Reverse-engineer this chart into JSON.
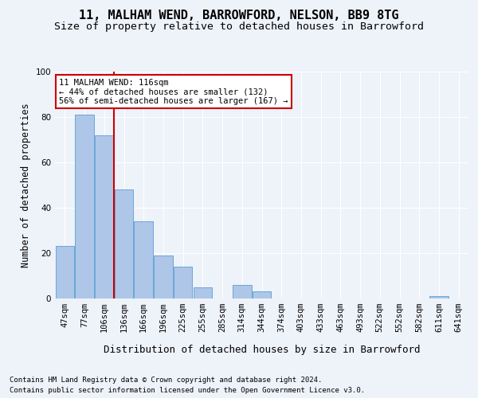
{
  "title": "11, MALHAM WEND, BARROWFORD, NELSON, BB9 8TG",
  "subtitle": "Size of property relative to detached houses in Barrowford",
  "xlabel": "Distribution of detached houses by size in Barrowford",
  "ylabel": "Number of detached properties",
  "categories": [
    "47sqm",
    "77sqm",
    "106sqm",
    "136sqm",
    "166sqm",
    "196sqm",
    "225sqm",
    "255sqm",
    "285sqm",
    "314sqm",
    "344sqm",
    "374sqm",
    "403sqm",
    "433sqm",
    "463sqm",
    "493sqm",
    "522sqm",
    "552sqm",
    "582sqm",
    "611sqm",
    "641sqm"
  ],
  "values": [
    23,
    81,
    72,
    48,
    34,
    19,
    14,
    5,
    0,
    6,
    3,
    0,
    0,
    0,
    0,
    0,
    0,
    0,
    0,
    1,
    0
  ],
  "bar_color": "#aec6e8",
  "bar_edgecolor": "#5a9fd4",
  "annotation_text": "11 MALHAM WEND: 116sqm\n← 44% of detached houses are smaller (132)\n56% of semi-detached houses are larger (167) →",
  "annotation_box_color": "#ffffff",
  "annotation_box_edgecolor": "#cc0000",
  "vline_color": "#cc0000",
  "background_color": "#eef2f9",
  "grid_color": "#ffffff",
  "footer_line1": "Contains HM Land Registry data © Crown copyright and database right 2024.",
  "footer_line2": "Contains public sector information licensed under the Open Government Licence v3.0.",
  "ylim": [
    0,
    100
  ],
  "title_fontsize": 11,
  "subtitle_fontsize": 9.5,
  "tick_fontsize": 7.5,
  "ylabel_fontsize": 8.5,
  "xlabel_fontsize": 9,
  "footer_fontsize": 6.5,
  "annot_fontsize": 7.5
}
